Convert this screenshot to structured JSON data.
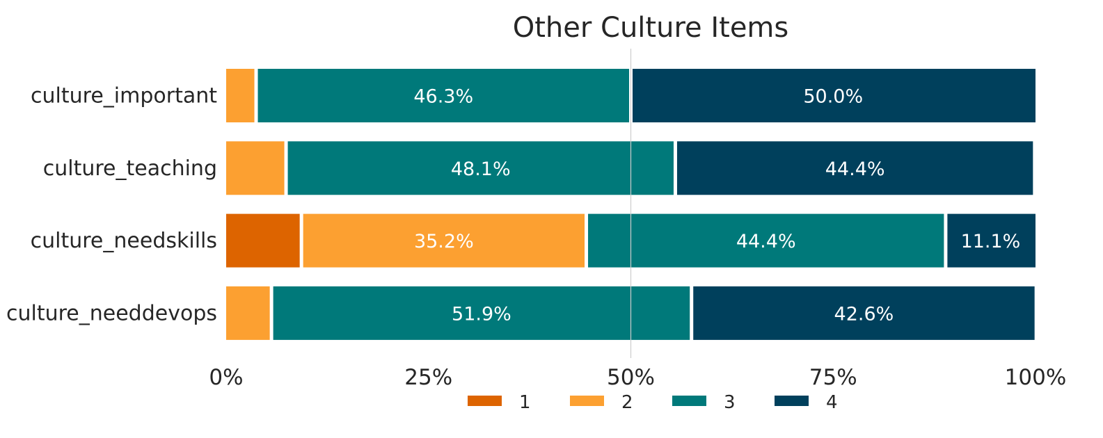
{
  "chart_data": {
    "type": "bar",
    "orientation": "horizontal",
    "stacked": true,
    "title": "Other Culture Items",
    "xlabel": "",
    "ylabel": "",
    "xlim": [
      0,
      100
    ],
    "grid": false,
    "legend_position": "bottom",
    "categories": [
      "culture_important",
      "culture_teaching",
      "culture_needskills",
      "culture_needdevops"
    ],
    "series": [
      {
        "name": "1",
        "color": "#DD6400",
        "values": [
          0,
          0,
          9.3,
          0
        ],
        "labels": [
          "",
          "",
          "",
          ""
        ]
      },
      {
        "name": "2",
        "color": "#FCA031",
        "values": [
          3.7,
          7.4,
          35.2,
          5.6
        ],
        "labels": [
          "",
          "",
          "35.2%",
          ""
        ]
      },
      {
        "name": "3",
        "color": "#00797A",
        "values": [
          46.3,
          48.1,
          44.4,
          51.9
        ],
        "labels": [
          "46.3%",
          "48.1%",
          "44.4%",
          "51.9%"
        ]
      },
      {
        "name": "4",
        "color": "#00405C",
        "values": [
          50.0,
          44.4,
          11.1,
          42.6
        ],
        "labels": [
          "50.0%",
          "44.4%",
          "11.1%",
          "42.6%"
        ]
      }
    ],
    "x_ticks": [
      "0%",
      "25%",
      "50%",
      "75%",
      "100%"
    ],
    "reference_line": 50
  }
}
